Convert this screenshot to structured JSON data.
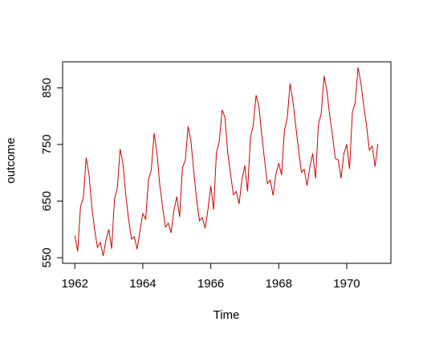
{
  "chart_data": {
    "type": "line",
    "title": "",
    "xlabel": "Time",
    "ylabel": "outcome",
    "xlim": [
      1961.64,
      1971.3
    ],
    "ylim": [
      540,
      896
    ],
    "xticks": [
      1962,
      1964,
      1966,
      1968,
      1970
    ],
    "xtick_labels": [
      "1962",
      "1964",
      "1966",
      "1968",
      "1970"
    ],
    "yticks": [
      550,
      650,
      750,
      850
    ],
    "ytick_labels": [
      "550",
      "650",
      "750",
      "850"
    ],
    "grid": false,
    "legend": "none",
    "series": [
      {
        "color": "#cc0000",
        "x_start": 1962.0,
        "x_step": 0.0833333,
        "values": [
          589,
          561,
          640,
          656,
          727,
          697,
          640,
          599,
          568,
          577,
          553,
          582,
          600,
          566,
          653,
          673,
          742,
          716,
          660,
          617,
          583,
          587,
          565,
          598,
          628,
          618,
          688,
          705,
          770,
          736,
          678,
          639,
          604,
          611,
          594,
          634,
          658,
          622,
          709,
          722,
          782,
          756,
          702,
          653,
          615,
          621,
          602,
          635,
          677,
          635,
          736,
          755,
          811,
          798,
          735,
          697,
          661,
          667,
          645,
          688,
          713,
          667,
          762,
          784,
          837,
          817,
          767,
          722,
          681,
          687,
          660,
          698,
          717,
          696,
          775,
          796,
          858,
          826,
          783,
          740,
          701,
          706,
          677,
          711,
          734,
          690,
          785,
          805,
          871,
          845,
          801,
          764,
          725,
          723,
          690,
          734,
          750,
          707,
          807,
          824,
          886,
          859,
          819,
          783,
          740,
          747,
          711,
          751
        ]
      }
    ]
  }
}
